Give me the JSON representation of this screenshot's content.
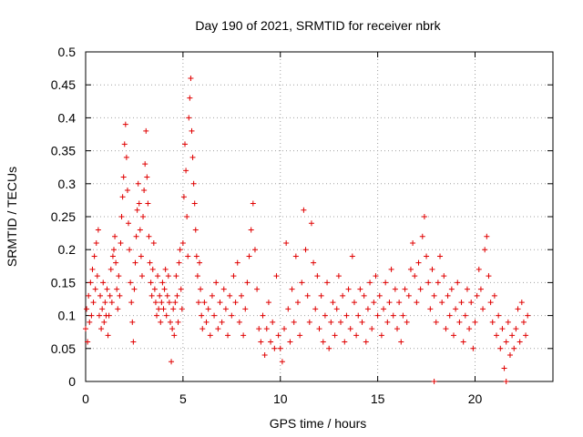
{
  "chart_data": {
    "type": "scatter",
    "title": "Day 190 of 2021, SRMTID for receiver nbrk",
    "xlabel": "GPS time / hours",
    "ylabel": "SRMTID / TECUs",
    "xlim": [
      0,
      24
    ],
    "ylim": [
      0,
      0.5
    ],
    "x_ticks": [
      0,
      5,
      10,
      15,
      20
    ],
    "y_ticks": [
      0,
      0.05,
      0.1,
      0.15,
      0.2,
      0.25,
      0.3,
      0.35,
      0.4,
      0.45,
      0.5
    ],
    "x_tick_labels": [
      "0",
      "5",
      "10",
      "15",
      "20"
    ],
    "y_tick_labels": [
      "0",
      "0.05",
      "0.1",
      "0.15",
      "0.2",
      "0.25",
      "0.3",
      "0.35",
      "0.4",
      "0.45",
      "0.5"
    ],
    "grid": true,
    "marker": "+",
    "color": "#e00000",
    "series": [
      {
        "name": "",
        "points": [
          [
            0.0,
            0.08
          ],
          [
            0.05,
            0.11
          ],
          [
            0.1,
            0.06
          ],
          [
            0.15,
            0.13
          ],
          [
            0.2,
            0.09
          ],
          [
            0.25,
            0.15
          ],
          [
            0.3,
            0.1
          ],
          [
            0.35,
            0.17
          ],
          [
            0.4,
            0.12
          ],
          [
            0.45,
            0.19
          ],
          [
            0.5,
            0.14
          ],
          [
            0.55,
            0.21
          ],
          [
            0.6,
            0.16
          ],
          [
            0.65,
            0.23
          ],
          [
            0.7,
            0.1
          ],
          [
            0.75,
            0.13
          ],
          [
            0.8,
            0.08
          ],
          [
            0.85,
            0.11
          ],
          [
            0.9,
            0.15
          ],
          [
            0.95,
            0.09
          ],
          [
            1.0,
            0.12
          ],
          [
            1.05,
            0.1
          ],
          [
            1.1,
            0.14
          ],
          [
            1.15,
            0.07
          ],
          [
            1.2,
            0.1
          ],
          [
            1.25,
            0.13
          ],
          [
            1.3,
            0.17
          ],
          [
            1.35,
            0.12
          ],
          [
            1.4,
            0.19
          ],
          [
            1.45,
            0.2
          ],
          [
            1.5,
            0.22
          ],
          [
            1.55,
            0.18
          ],
          [
            1.6,
            0.14
          ],
          [
            1.65,
            0.11
          ],
          [
            1.7,
            0.16
          ],
          [
            1.75,
            0.13
          ],
          [
            1.8,
            0.21
          ],
          [
            1.85,
            0.25
          ],
          [
            1.9,
            0.28
          ],
          [
            1.95,
            0.31
          ],
          [
            2.0,
            0.36
          ],
          [
            2.05,
            0.39
          ],
          [
            2.1,
            0.34
          ],
          [
            2.15,
            0.29
          ],
          [
            2.2,
            0.24
          ],
          [
            2.25,
            0.2
          ],
          [
            2.3,
            0.15
          ],
          [
            2.35,
            0.12
          ],
          [
            2.4,
            0.09
          ],
          [
            2.45,
            0.06
          ],
          [
            2.5,
            0.14
          ],
          [
            2.55,
            0.18
          ],
          [
            2.6,
            0.22
          ],
          [
            2.65,
            0.26
          ],
          [
            2.7,
            0.3
          ],
          [
            2.75,
            0.27
          ],
          [
            2.8,
            0.23
          ],
          [
            2.85,
            0.19
          ],
          [
            2.9,
            0.16
          ],
          [
            2.95,
            0.25
          ],
          [
            3.0,
            0.29
          ],
          [
            3.05,
            0.33
          ],
          [
            3.1,
            0.38
          ],
          [
            3.15,
            0.31
          ],
          [
            3.2,
            0.27
          ],
          [
            3.25,
            0.22
          ],
          [
            3.3,
            0.18
          ],
          [
            3.35,
            0.15
          ],
          [
            3.4,
            0.13
          ],
          [
            3.45,
            0.17
          ],
          [
            3.5,
            0.21
          ],
          [
            3.55,
            0.14
          ],
          [
            3.6,
            0.12
          ],
          [
            3.65,
            0.1
          ],
          [
            3.7,
            0.16
          ],
          [
            3.75,
            0.11
          ],
          [
            3.8,
            0.13
          ],
          [
            3.85,
            0.09
          ],
          [
            3.9,
            0.12
          ],
          [
            3.95,
            0.15
          ],
          [
            4.0,
            0.11
          ],
          [
            4.05,
            0.14
          ],
          [
            4.1,
            0.17
          ],
          [
            4.15,
            0.1
          ],
          [
            4.2,
            0.13
          ],
          [
            4.25,
            0.16
          ],
          [
            4.3,
            0.12
          ],
          [
            4.35,
            0.09
          ],
          [
            4.4,
            0.03
          ],
          [
            4.45,
            0.08
          ],
          [
            4.5,
            0.11
          ],
          [
            4.55,
            0.07
          ],
          [
            4.6,
            0.12
          ],
          [
            4.65,
            0.16
          ],
          [
            4.7,
            0.13
          ],
          [
            4.75,
            0.09
          ],
          [
            4.8,
            0.18
          ],
          [
            4.85,
            0.2
          ],
          [
            4.9,
            0.14
          ],
          [
            4.95,
            0.11
          ],
          [
            5.0,
            0.21
          ],
          [
            5.05,
            0.28
          ],
          [
            5.1,
            0.36
          ],
          [
            5.15,
            0.32
          ],
          [
            5.2,
            0.25
          ],
          [
            5.25,
            0.19
          ],
          [
            5.3,
            0.4
          ],
          [
            5.35,
            0.43
          ],
          [
            5.4,
            0.46
          ],
          [
            5.45,
            0.38
          ],
          [
            5.5,
            0.34
          ],
          [
            5.55,
            0.3
          ],
          [
            5.6,
            0.27
          ],
          [
            5.65,
            0.23
          ],
          [
            5.7,
            0.19
          ],
          [
            5.75,
            0.16
          ],
          [
            5.8,
            0.12
          ],
          [
            5.85,
            0.18
          ],
          [
            5.9,
            0.14
          ],
          [
            5.95,
            0.1
          ],
          [
            6.0,
            0.08
          ],
          [
            6.1,
            0.12
          ],
          [
            6.2,
            0.09
          ],
          [
            6.3,
            0.11
          ],
          [
            6.4,
            0.07
          ],
          [
            6.5,
            0.13
          ],
          [
            6.6,
            0.1
          ],
          [
            6.7,
            0.15
          ],
          [
            6.8,
            0.08
          ],
          [
            6.9,
            0.12
          ],
          [
            7.0,
            0.09
          ],
          [
            7.1,
            0.14
          ],
          [
            7.2,
            0.11
          ],
          [
            7.3,
            0.07
          ],
          [
            7.4,
            0.13
          ],
          [
            7.5,
            0.1
          ],
          [
            7.6,
            0.16
          ],
          [
            7.7,
            0.12
          ],
          [
            7.8,
            0.18
          ],
          [
            7.9,
            0.09
          ],
          [
            8.0,
            0.13
          ],
          [
            8.1,
            0.07
          ],
          [
            8.2,
            0.11
          ],
          [
            8.3,
            0.15
          ],
          [
            8.4,
            0.19
          ],
          [
            8.5,
            0.23
          ],
          [
            8.6,
            0.27
          ],
          [
            8.7,
            0.2
          ],
          [
            8.8,
            0.14
          ],
          [
            8.9,
            0.08
          ],
          [
            9.0,
            0.06
          ],
          [
            9.1,
            0.1
          ],
          [
            9.2,
            0.04
          ],
          [
            9.3,
            0.08
          ],
          [
            9.4,
            0.12
          ],
          [
            9.5,
            0.06
          ],
          [
            9.6,
            0.09
          ],
          [
            9.7,
            0.05
          ],
          [
            9.8,
            0.16
          ],
          [
            9.9,
            0.07
          ],
          [
            10.0,
            0.05
          ],
          [
            10.1,
            0.03
          ],
          [
            10.2,
            0.08
          ],
          [
            10.3,
            0.21
          ],
          [
            10.4,
            0.11
          ],
          [
            10.5,
            0.06
          ],
          [
            10.6,
            0.14
          ],
          [
            10.7,
            0.09
          ],
          [
            10.8,
            0.19
          ],
          [
            10.9,
            0.12
          ],
          [
            11.0,
            0.07
          ],
          [
            11.1,
            0.15
          ],
          [
            11.2,
            0.26
          ],
          [
            11.3,
            0.2
          ],
          [
            11.4,
            0.13
          ],
          [
            11.5,
            0.09
          ],
          [
            11.6,
            0.24
          ],
          [
            11.7,
            0.18
          ],
          [
            11.8,
            0.11
          ],
          [
            11.9,
            0.16
          ],
          [
            12.0,
            0.08
          ],
          [
            12.1,
            0.13
          ],
          [
            12.2,
            0.06
          ],
          [
            12.3,
            0.1
          ],
          [
            12.4,
            0.15
          ],
          [
            12.5,
            0.05
          ],
          [
            12.6,
            0.09
          ],
          [
            12.7,
            0.12
          ],
          [
            12.8,
            0.07
          ],
          [
            12.9,
            0.11
          ],
          [
            13.0,
            0.16
          ],
          [
            13.1,
            0.09
          ],
          [
            13.2,
            0.13
          ],
          [
            13.3,
            0.06
          ],
          [
            13.4,
            0.1
          ],
          [
            13.5,
            0.14
          ],
          [
            13.6,
            0.08
          ],
          [
            13.7,
            0.19
          ],
          [
            13.8,
            0.12
          ],
          [
            13.9,
            0.07
          ],
          [
            14.0,
            0.1
          ],
          [
            14.1,
            0.14
          ],
          [
            14.2,
            0.09
          ],
          [
            14.3,
            0.13
          ],
          [
            14.4,
            0.06
          ],
          [
            14.5,
            0.11
          ],
          [
            14.6,
            0.15
          ],
          [
            14.7,
            0.08
          ],
          [
            14.8,
            0.12
          ],
          [
            14.9,
            0.16
          ],
          [
            15.0,
            0.1
          ],
          [
            15.1,
            0.13
          ],
          [
            15.2,
            0.07
          ],
          [
            15.3,
            0.11
          ],
          [
            15.4,
            0.15
          ],
          [
            15.5,
            0.09
          ],
          [
            15.6,
            0.12
          ],
          [
            15.7,
            0.17
          ],
          [
            15.8,
            0.1
          ],
          [
            15.9,
            0.14
          ],
          [
            16.0,
            0.08
          ],
          [
            16.1,
            0.12
          ],
          [
            16.2,
            0.06
          ],
          [
            16.3,
            0.1
          ],
          [
            16.4,
            0.14
          ],
          [
            16.5,
            0.09
          ],
          [
            16.6,
            0.13
          ],
          [
            16.7,
            0.17
          ],
          [
            16.8,
            0.21
          ],
          [
            16.9,
            0.16
          ],
          [
            17.0,
            0.12
          ],
          [
            17.1,
            0.18
          ],
          [
            17.2,
            0.14
          ],
          [
            17.3,
            0.22
          ],
          [
            17.4,
            0.25
          ],
          [
            17.5,
            0.19
          ],
          [
            17.6,
            0.15
          ],
          [
            17.7,
            0.11
          ],
          [
            17.8,
            0.17
          ],
          [
            17.9,
            0.13
          ],
          [
            18.0,
            0.09
          ],
          [
            18.1,
            0.15
          ],
          [
            18.2,
            0.19
          ],
          [
            18.3,
            0.12
          ],
          [
            18.4,
            0.16
          ],
          [
            18.5,
            0.08
          ],
          [
            18.6,
            0.13
          ],
          [
            18.7,
            0.1
          ],
          [
            18.8,
            0.14
          ],
          [
            18.9,
            0.07
          ],
          [
            19.0,
            0.11
          ],
          [
            19.1,
            0.15
          ],
          [
            19.2,
            0.09
          ],
          [
            19.3,
            0.12
          ],
          [
            19.4,
            0.06
          ],
          [
            19.5,
            0.1
          ],
          [
            19.6,
            0.14
          ],
          [
            19.7,
            0.08
          ],
          [
            19.8,
            0.12
          ],
          [
            19.9,
            0.05
          ],
          [
            20.0,
            0.09
          ],
          [
            20.1,
            0.13
          ],
          [
            20.2,
            0.17
          ],
          [
            20.3,
            0.14
          ],
          [
            20.4,
            0.11
          ],
          [
            20.5,
            0.2
          ],
          [
            20.6,
            0.22
          ],
          [
            20.7,
            0.16
          ],
          [
            20.8,
            0.12
          ],
          [
            20.9,
            0.09
          ],
          [
            21.0,
            0.13
          ],
          [
            21.1,
            0.07
          ],
          [
            21.2,
            0.1
          ],
          [
            21.3,
            0.05
          ],
          [
            21.4,
            0.08
          ],
          [
            21.5,
            0.02
          ],
          [
            21.6,
            0.06
          ],
          [
            21.7,
            0.09
          ],
          [
            21.8,
            0.04
          ],
          [
            21.9,
            0.07
          ],
          [
            22.0,
            0.05
          ],
          [
            22.1,
            0.08
          ],
          [
            22.2,
            0.11
          ],
          [
            22.3,
            0.06
          ],
          [
            22.4,
            0.12
          ],
          [
            22.5,
            0.09
          ],
          [
            22.6,
            0.07
          ],
          [
            22.7,
            0.1
          ],
          [
            17.9,
            0.0
          ],
          [
            21.6,
            0.0
          ]
        ]
      }
    ]
  }
}
